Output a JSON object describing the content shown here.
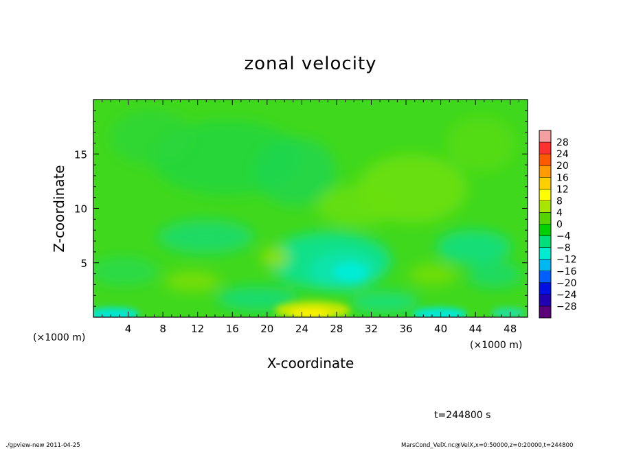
{
  "chart_data": {
    "type": "heatmap",
    "title": "zonal velocity",
    "xlabel": "X-coordinate",
    "ylabel": "Z-coordinate",
    "x_unit_left": "(×1000 m)",
    "x_unit_right": "(×1000 m)",
    "xlim": [
      0,
      50
    ],
    "ylim": [
      0,
      20
    ],
    "x_ticks": [
      4,
      8,
      12,
      16,
      20,
      24,
      28,
      32,
      36,
      40,
      44,
      48
    ],
    "y_ticks": [
      5,
      10,
      15
    ],
    "colorbar": {
      "levels": [
        28,
        24,
        20,
        16,
        12,
        8,
        4,
        0,
        -4,
        -8,
        -12,
        -16,
        -20,
        -24,
        -28
      ],
      "labels": [
        "28",
        "24",
        "20",
        "16",
        "12",
        "8",
        "4",
        "0",
        "−4",
        "−8",
        "−12",
        "−16",
        "−20",
        "−24",
        "−28"
      ],
      "colors": [
        "#f4a0a0",
        "#ff3030",
        "#ff5a00",
        "#ff9a00",
        "#ffd000",
        "#ffff00",
        "#a8e600",
        "#55d400",
        "#00d000",
        "#00e07a",
        "#00ecd0",
        "#00b8f0",
        "#0060ff",
        "#0010e0",
        "#2000b0",
        "#5a0078"
      ]
    },
    "field_notes": "Mostly 0 to 4 m/s; negative (-4 to -12) pockets near x 14-30 at z 3-8 and x 36-42 near surface; positive (8-12) maximum near x 24-27 at the surface",
    "grid": false
  },
  "annotations": {
    "time": "t=244800 s",
    "footer_left": "./gpview-new  2011-04-25",
    "footer_right": "MarsCond_VelX.nc@VelX,x=0:50000,z=0:20000,t=244800"
  },
  "colors": {
    "background": "#ffffff",
    "axis": "#000000",
    "field_base": "#3fd81a"
  }
}
